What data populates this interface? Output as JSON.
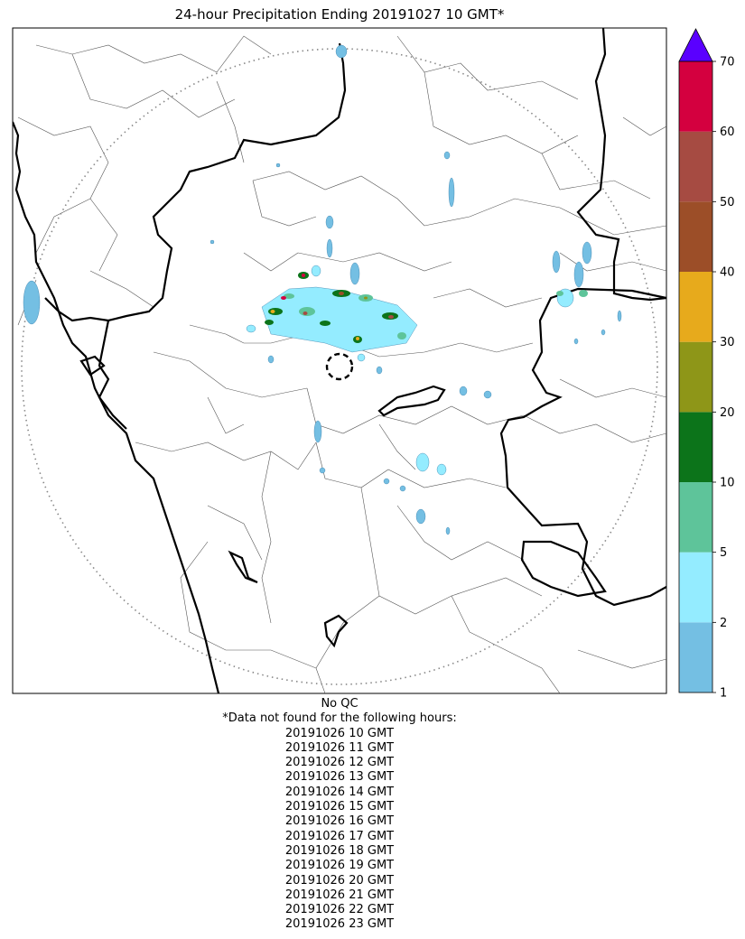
{
  "title": "24-hour Precipitation Ending 20191027 10 GMT*",
  "footer": {
    "qc": "No QC",
    "missing_header": "*Data not found for the following hours:",
    "missing_hours": [
      "20191026 10 GMT",
      "20191026 11 GMT",
      "20191026 12 GMT",
      "20191026 13 GMT",
      "20191026 14 GMT",
      "20191026 15 GMT",
      "20191026 16 GMT",
      "20191026 17 GMT",
      "20191026 18 GMT",
      "20191026 19 GMT",
      "20191026 20 GMT",
      "20191026 21 GMT",
      "20191026 22 GMT",
      "20191026 23 GMT"
    ]
  },
  "colorbar": {
    "ticks": [
      "1",
      "2",
      "5",
      "10",
      "20",
      "30",
      "40",
      "50",
      "60",
      "70"
    ],
    "colors": [
      "#74bfe3",
      "#94ecff",
      "#5ec49a",
      "#0c741a",
      "#8e9618",
      "#e7aa1c",
      "#9c4e28",
      "#a64b42",
      "#d4003f"
    ],
    "extend_color": "#5a00ff"
  },
  "colors": {
    "border_major": "#000000",
    "border_minor": "#555555",
    "range_ring": "#888888",
    "light_rain": "#74bfe3",
    "moderate_rain": "#94ecff"
  }
}
